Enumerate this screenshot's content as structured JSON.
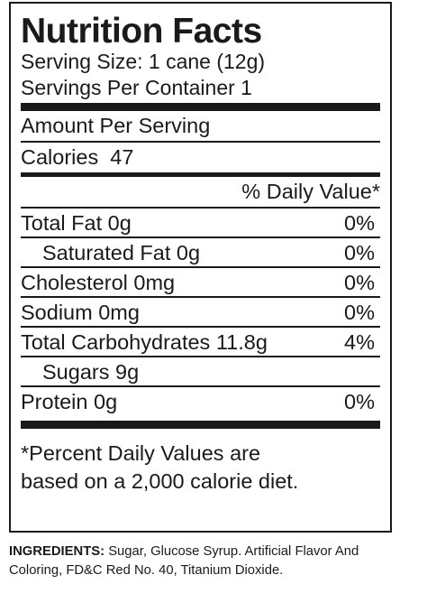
{
  "title": "Nutrition Facts",
  "serving_size": "Serving Size: 1 cane (12g)",
  "servings_per_container": "Servings Per Container 1",
  "amount_per_serving": "Amount Per Serving",
  "calories_label": "Calories",
  "calories_value": "47",
  "daily_value_header": "% Daily Value*",
  "nutrients": [
    {
      "name": "Total Fat",
      "amount": "0g",
      "dv": "0%"
    },
    {
      "name": "Saturated Fat",
      "amount": "0g",
      "dv": "0%"
    },
    {
      "name": "Cholesterol",
      "amount": "0mg",
      "dv": "0%"
    },
    {
      "name": "Sodium",
      "amount": "0mg",
      "dv": "0%"
    },
    {
      "name": "Total Carbohydrates",
      "amount": "11.8g",
      "dv": "4%"
    },
    {
      "name": "Sugars",
      "amount": "9g",
      "dv": ""
    },
    {
      "name": "Protein",
      "amount": "0g",
      "dv": "0%"
    }
  ],
  "footnote_line1": "*Percent Daily Values are",
  "footnote_line2": "based on a 2,000 calorie diet.",
  "ingredients_label": "INGREDIENTS:",
  "ingredients_text": "Sugar, Glucose Syrup. Artificial Flavor And Coloring, FD&C Red No. 40, Titanium Dioxide."
}
